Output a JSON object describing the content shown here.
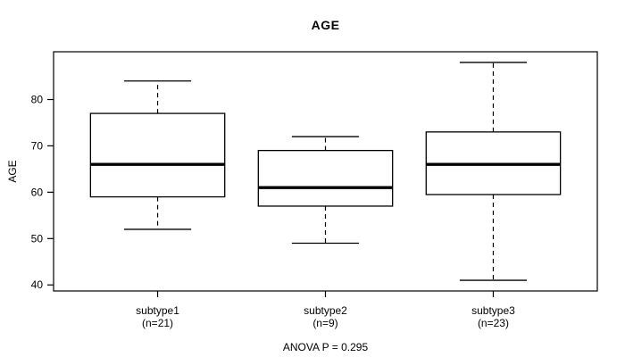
{
  "chart_data": {
    "type": "boxplot",
    "title": "AGE",
    "ylabel": "AGE",
    "xlabel": "",
    "categories": [
      "subtype1",
      "subtype2",
      "subtype3"
    ],
    "category_counts": [
      "(n=21)",
      "(n=9)",
      "(n=23)"
    ],
    "series": [
      {
        "name": "subtype1",
        "n": 21,
        "whisker_low": 52,
        "q1": 59,
        "median": 66,
        "q3": 77,
        "whisker_high": 84
      },
      {
        "name": "subtype2",
        "n": 9,
        "whisker_low": 49,
        "q1": 57,
        "median": 61,
        "q3": 69,
        "whisker_high": 72
      },
      {
        "name": "subtype3",
        "n": 23,
        "whisker_low": 41,
        "q1": 59.5,
        "median": 66,
        "q3": 73,
        "whisker_high": 88
      }
    ],
    "yticks": [
      40,
      50,
      60,
      70,
      80
    ],
    "ylim": [
      38.7,
      90.3
    ],
    "xlim": [
      0.38,
      3.62
    ],
    "annotation": "ANOVA P = 0.295",
    "grid": false,
    "legend": false,
    "box_fill": "#ffffff",
    "line_color": "#000000",
    "background": "#ffffff"
  }
}
